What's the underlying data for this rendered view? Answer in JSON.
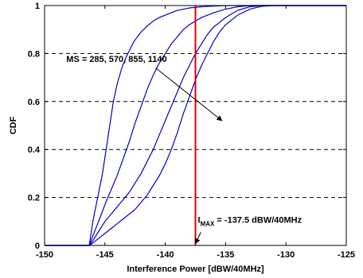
{
  "chart_data": {
    "type": "line",
    "title": "",
    "xlabel": "Interference Power [dBW/40MHz]",
    "ylabel": "CDF",
    "xlim": [
      -150,
      -125
    ],
    "ylim": [
      0,
      1
    ],
    "xticks": [
      -150,
      -145,
      -140,
      -135,
      -130,
      -125
    ],
    "yticks": [
      0,
      0.2,
      0.4,
      0.6,
      0.8,
      1
    ],
    "grid": "horizontal-dashed",
    "legend": "none",
    "line_color": "#0000cc",
    "threshold_color": "#dd0000",
    "series": [
      {
        "x": [
          -150,
          -146.3,
          -146.0,
          -145.6,
          -145.2,
          -144.9,
          -144.6,
          -144.3,
          -144.0,
          -143.6,
          -143.2,
          -142.9,
          -142.6,
          -142.3,
          -142.0,
          -141.5,
          -141.0,
          -140.5,
          -140.0,
          -139.5,
          -139.0,
          -138.5,
          -138.0,
          -137.0,
          -136.0,
          -135.0,
          -134.0,
          -133.0,
          -125
        ],
        "y": [
          0,
          0,
          0.1,
          0.2,
          0.3,
          0.4,
          0.5,
          0.6,
          0.67,
          0.74,
          0.79,
          0.82,
          0.85,
          0.87,
          0.89,
          0.915,
          0.935,
          0.95,
          0.96,
          0.97,
          0.98,
          0.985,
          0.99,
          0.995,
          0.998,
          1,
          1,
          1,
          1
        ]
      },
      {
        "x": [
          -150,
          -146.3,
          -146.0,
          -145.6,
          -145.3,
          -145.0,
          -144.5,
          -144.0,
          -143.5,
          -143.0,
          -142.5,
          -142.0,
          -141.5,
          -141.0,
          -140.5,
          -140.0,
          -139.5,
          -139.0,
          -138.5,
          -138.0,
          -137.0,
          -136.0,
          -135.0,
          -134.0,
          -133.0,
          -125
        ],
        "y": [
          0,
          0,
          0.04,
          0.09,
          0.13,
          0.17,
          0.23,
          0.29,
          0.36,
          0.43,
          0.51,
          0.58,
          0.65,
          0.71,
          0.76,
          0.8,
          0.84,
          0.87,
          0.9,
          0.92,
          0.95,
          0.97,
          0.985,
          0.995,
          1,
          1
        ]
      },
      {
        "x": [
          -150,
          -146.3,
          -146.0,
          -145.5,
          -145.0,
          -144.5,
          -144.0,
          -143.5,
          -143.0,
          -142.5,
          -142.0,
          -141.5,
          -141.0,
          -140.5,
          -140.0,
          -139.5,
          -139.0,
          -138.5,
          -138.0,
          -137.5,
          -137.0,
          -136.5,
          -136.0,
          -135.0,
          -134.0,
          -133.0,
          -132.0,
          -125
        ],
        "y": [
          0,
          0,
          0.02,
          0.06,
          0.1,
          0.13,
          0.16,
          0.19,
          0.22,
          0.26,
          0.3,
          0.35,
          0.4,
          0.46,
          0.52,
          0.58,
          0.64,
          0.7,
          0.75,
          0.8,
          0.84,
          0.88,
          0.91,
          0.95,
          0.98,
          0.995,
          1,
          1
        ]
      },
      {
        "x": [
          -150,
          -146.3,
          -146.0,
          -145.5,
          -145.0,
          -144.5,
          -144.0,
          -143.5,
          -143.0,
          -142.5,
          -142.0,
          -141.5,
          -141.0,
          -140.5,
          -140.0,
          -139.5,
          -139.0,
          -138.5,
          -138.0,
          -137.5,
          -137.0,
          -136.5,
          -136.0,
          -135.5,
          -135.0,
          -134.0,
          -133.0,
          -132.0,
          -131.0,
          -125
        ],
        "y": [
          0,
          0,
          0.01,
          0.03,
          0.05,
          0.07,
          0.09,
          0.11,
          0.13,
          0.15,
          0.18,
          0.21,
          0.25,
          0.29,
          0.34,
          0.4,
          0.47,
          0.55,
          0.62,
          0.69,
          0.75,
          0.8,
          0.85,
          0.89,
          0.92,
          0.96,
          0.985,
          0.997,
          1,
          1
        ]
      }
    ],
    "threshold": {
      "x": -137.5,
      "label_main": "I",
      "label_sub": "MAX",
      "label_rest": " = -137.5 dBW/40MHz",
      "label_x": -137.3,
      "label_y": 0.095,
      "arrow_from": [
        -137.05,
        0.055
      ],
      "arrow_to": [
        -137.5,
        0.008
      ]
    },
    "annotation": {
      "text": "MS = 285, 570, 855, 1140",
      "x": -148.2,
      "y": 0.765,
      "arrow_from": [
        -140.8,
        0.74
      ],
      "arrow_to": [
        -135.3,
        0.52
      ]
    }
  }
}
